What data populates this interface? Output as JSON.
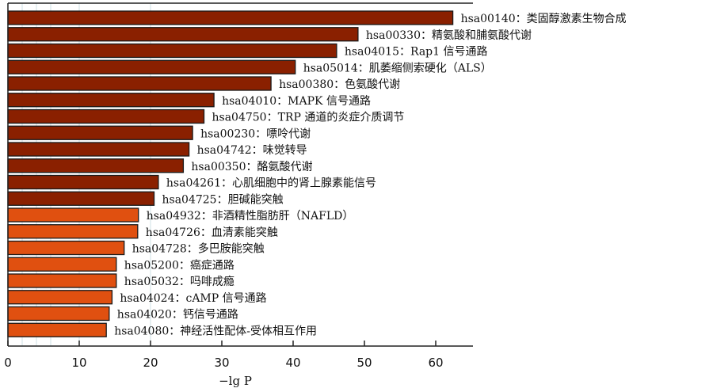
{
  "chart_data": {
    "type": "bar",
    "orientation": "horizontal",
    "title": "",
    "xlabel": "−lg P",
    "ylabel": "",
    "xlim": [
      0,
      65.3
    ],
    "xticks": [
      0,
      10,
      20,
      30,
      40,
      50,
      60
    ],
    "grid_x": [
      2,
      4,
      6,
      10,
      20
    ],
    "colors": {
      "dark": "#8a2000",
      "light": "#e05010"
    },
    "categories": [
      "hsa00140：类固醇激素生物合成",
      "hsa00330：精氨酸和脯氨酸代谢",
      "hsa04015：Rap1 信号通路",
      "hsa05014：肌萎缩侧索硬化（ALS）",
      "hsa00380：色氨酸代谢",
      "hsa04010：MAPK 信号通路",
      "hsa04750：TRP 通道的炎症介质调节",
      "hsa00230：嘌呤代谢",
      "hsa04742：味觉转导",
      "hsa00350：酪氨酸代谢",
      "hsa04261：心肌细胞中的肾上腺素能信号",
      "hsa04725：胆碱能突触",
      "hsa04932：非酒精性脂肪肝（NAFLD）",
      "hsa04726：血清素能突触",
      "hsa04728：多巴胺能突触",
      "hsa05200：癌症通路",
      "hsa05032：吗啡成瘾",
      "hsa04024：cAMP 信号通路",
      "hsa04020：钙信号通路",
      "hsa04080：神经活性配体-受体相互作用"
    ],
    "values": [
      62.4,
      49.1,
      46.1,
      40.3,
      36.9,
      28.9,
      27.5,
      25.9,
      25.4,
      24.6,
      21.1,
      20.5,
      18.3,
      18.2,
      16.3,
      15.2,
      15.2,
      14.6,
      14.2,
      13.8
    ],
    "color_group": [
      "dark",
      "dark",
      "dark",
      "dark",
      "dark",
      "dark",
      "dark",
      "dark",
      "dark",
      "dark",
      "dark",
      "dark",
      "light",
      "light",
      "light",
      "light",
      "light",
      "light",
      "light",
      "light"
    ]
  }
}
